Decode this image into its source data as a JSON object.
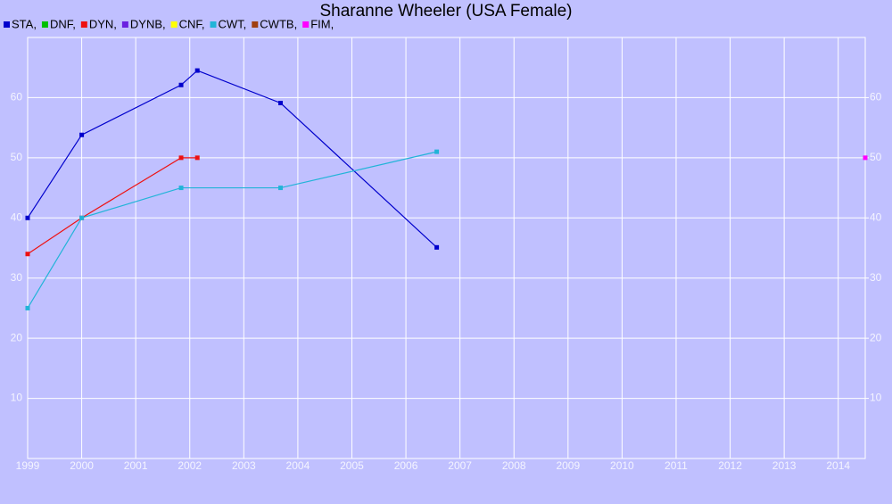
{
  "chart_data": {
    "type": "line",
    "title": "Sharanne Wheeler (USA Female)",
    "xlim": [
      1999,
      2014.5
    ],
    "ylim": [
      0,
      70
    ],
    "xticks": [
      1999,
      2000,
      2001,
      2002,
      2003,
      2004,
      2005,
      2006,
      2007,
      2008,
      2009,
      2010,
      2011,
      2012,
      2013,
      2014
    ],
    "yticks": [
      10,
      20,
      30,
      40,
      50,
      60
    ],
    "y2ticks": [
      10,
      20,
      30,
      40,
      50,
      60
    ],
    "grid": true,
    "series": [
      {
        "name": "STA,",
        "color": "#0000cc",
        "x": [
          1999,
          2000,
          2001.84,
          2002.14,
          2003.68,
          2006.57
        ],
        "values": [
          40,
          53.8,
          62.1,
          64.5,
          59.1,
          35.1
        ]
      },
      {
        "name": "DNF,",
        "color": "#00c000",
        "x": [],
        "values": []
      },
      {
        "name": "DYN,",
        "color": "#ee1111",
        "x": [
          1999,
          2000,
          2001.84,
          2002.14
        ],
        "values": [
          34,
          40,
          50,
          50
        ]
      },
      {
        "name": "DYNB,",
        "color": "#6a22e0",
        "x": [],
        "values": []
      },
      {
        "name": "CNF,",
        "color": "#ffff00",
        "x": [],
        "values": []
      },
      {
        "name": "CWT,",
        "color": "#22b4d8",
        "x": [
          1999,
          2000,
          2001.84,
          2003.68,
          2006.57
        ],
        "values": [
          25,
          40,
          45,
          45,
          51
        ]
      },
      {
        "name": "CWTB,",
        "color": "#a04010",
        "x": [],
        "values": []
      },
      {
        "name": "FIM,",
        "color": "#ff00ff",
        "x": [
          2014.5
        ],
        "values": [
          50
        ]
      }
    ]
  }
}
